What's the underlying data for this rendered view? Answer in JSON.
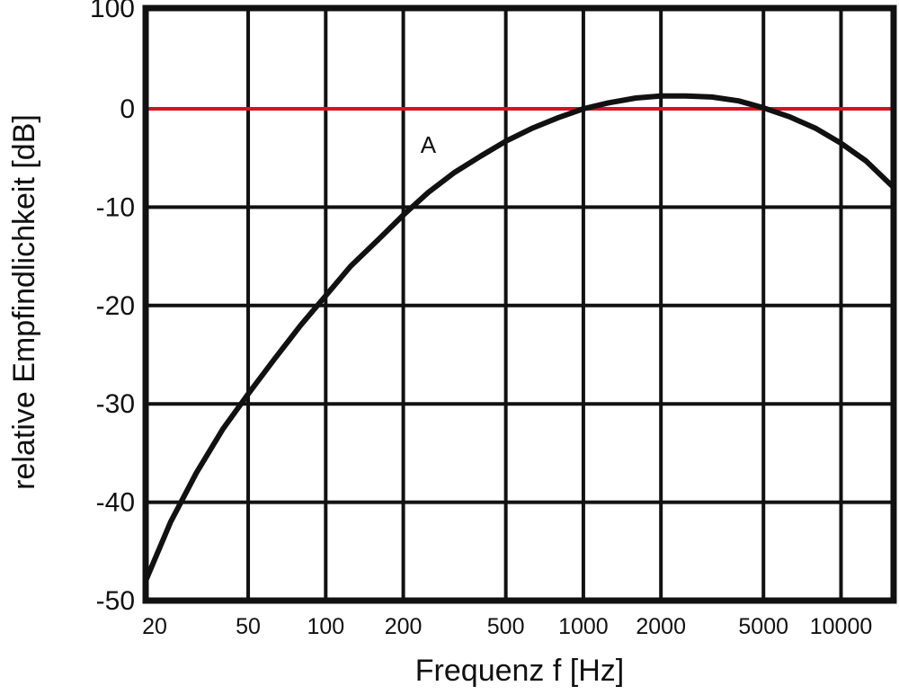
{
  "chart_data": {
    "type": "line",
    "xlabel": "Frequenz f [Hz]",
    "ylabel": "relative Empfindlichkeit [dB]",
    "x_scale": "log",
    "xlim": [
      20,
      16000
    ],
    "ylim": [
      -50,
      100
    ],
    "x_ticks": [
      20,
      50,
      100,
      200,
      500,
      1000,
      2000,
      5000,
      10000
    ],
    "x_tick_labels": [
      "20",
      "50",
      "100",
      "200",
      "500",
      "1000",
      "2000",
      "5000",
      "10000"
    ],
    "y_ticks": [
      100,
      0,
      -10,
      -20,
      -30,
      -40,
      -50
    ],
    "y_tick_labels": [
      "100",
      "0",
      "-10",
      "-20",
      "-30",
      "-40",
      "-50"
    ],
    "grid": true,
    "reference_line": {
      "y": 0,
      "color": "#d7141a"
    },
    "series": [
      {
        "name": "A",
        "color": "#111111",
        "x": [
          20,
          25,
          31.5,
          40,
          50,
          63,
          80,
          100,
          125,
          160,
          200,
          250,
          315,
          400,
          500,
          630,
          800,
          1000,
          1250,
          1600,
          2000,
          2500,
          3150,
          4000,
          5000,
          6300,
          8000,
          10000,
          12500,
          16000
        ],
        "y": [
          -48,
          -42,
          -37,
          -32.5,
          -29,
          -25.5,
          -22,
          -19,
          -16,
          -13.3,
          -10.8,
          -8.5,
          -6.5,
          -4.8,
          -3.3,
          -2,
          -0.9,
          0,
          0.6,
          1.1,
          1.3,
          1.3,
          1.2,
          0.8,
          0.1,
          -0.8,
          -2.0,
          -3.5,
          -5.3,
          -8
        ]
      }
    ]
  }
}
